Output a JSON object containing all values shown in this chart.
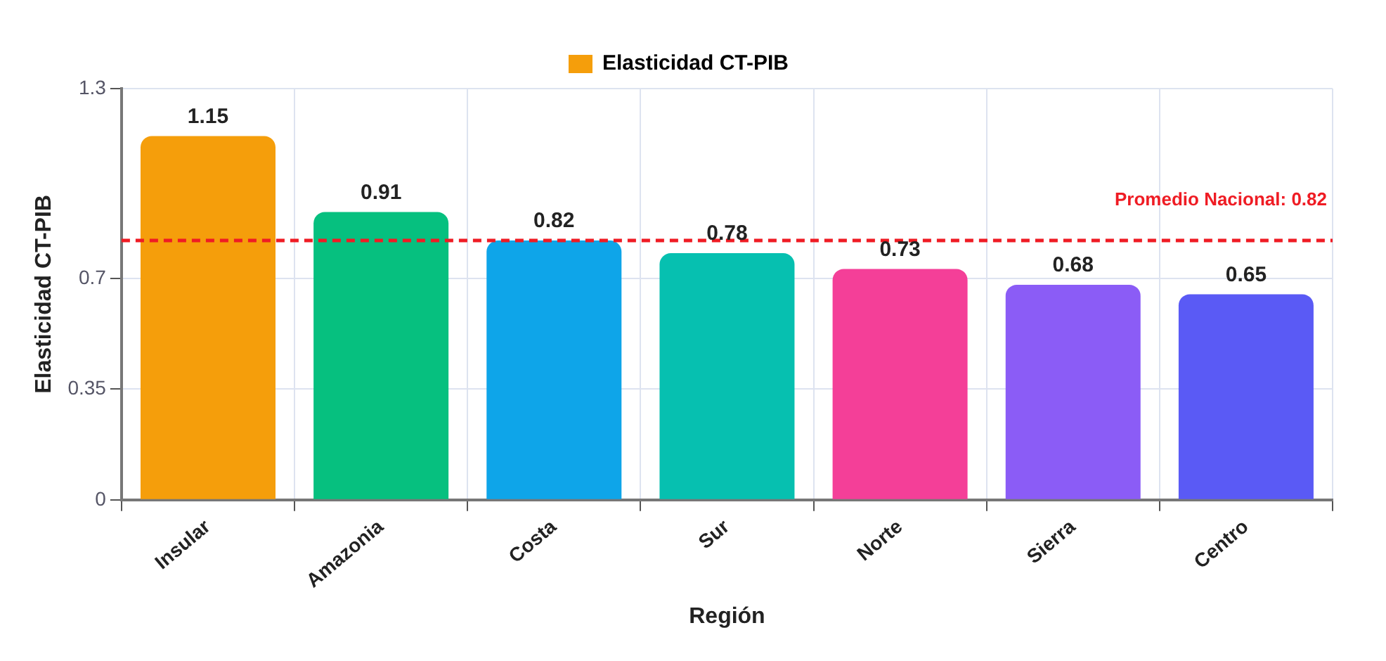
{
  "chart_data": {
    "type": "bar",
    "xlabel": "Región",
    "ylabel": "Elasticidad CT-PIB",
    "categories": [
      "Insular",
      "Amazonia",
      "Costa",
      "Sur",
      "Norte",
      "Sierra",
      "Centro"
    ],
    "series": [
      {
        "name": "Elasticidad CT-PIB",
        "values": [
          1.15,
          0.91,
          0.82,
          0.78,
          0.73,
          0.68,
          0.65
        ],
        "colors": [
          "#f59e0b",
          "#06c07f",
          "#0ea5e9",
          "#06c0b0",
          "#f43f98",
          "#8b5cf6",
          "#5a5af5"
        ]
      }
    ],
    "ylim": [
      0,
      1.3
    ],
    "yticks": [
      0,
      0.35,
      0.7,
      1.3
    ],
    "ref_lines": [
      {
        "axis": "y",
        "value": 0.82,
        "label": "Promedio Nacional: 0.82",
        "color": "#ef1c24",
        "line_style": "dashed"
      }
    ],
    "data_labels": true,
    "grid": true,
    "legend": "top"
  }
}
